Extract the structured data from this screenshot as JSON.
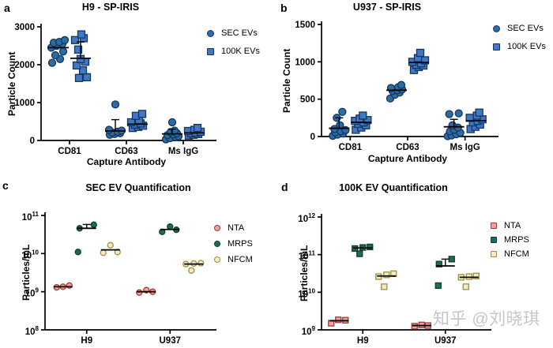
{
  "watermark": {
    "text": "知乎 @刘晓琪",
    "color": "#c6c6c6"
  },
  "palette": {
    "sec_ev_blue": "#2d6ba3",
    "k100_ev_blue": "#4277c6",
    "nta_pink": "#efa39a",
    "mrps_green": "#1e6a54",
    "nfcm_yellow": "#f4ecc0",
    "axis_black": "#000000"
  },
  "chart_data": [
    {
      "panel_label": "a",
      "type": "scatter",
      "title": "H9 - SP-IRIS",
      "ylabel": "Particle Count",
      "xlabel": "Capture Antibody",
      "categories": [
        "CD81",
        "CD63",
        "Ms IgG"
      ],
      "yaxis": {
        "scale": "linear",
        "min": 0,
        "max": 3000,
        "ticks": [
          0,
          1000,
          2000,
          3000
        ]
      },
      "legend_position": "right-top",
      "series": [
        {
          "name": "SEC EVs",
          "marker": "circle",
          "fill": "#2d6ba3",
          "stroke": "#14355e",
          "groups": [
            {
              "points": [
                [
                  -8,
                  2050
                ],
                [
                  2,
                  2150
                ],
                [
                  -4,
                  2250
                ],
                [
                  6,
                  2350
                ],
                [
                  -9,
                  2450
                ],
                [
                  -2,
                  2500
                ],
                [
                  5,
                  2550
                ],
                [
                  -6,
                  2580
                ],
                [
                  1,
                  2600
                ],
                [
                  8,
                  2650
                ]
              ],
              "mean": 2450
            },
            {
              "points": [
                [
                  -7,
                  150
                ],
                [
                  -1,
                  170
                ],
                [
                  6,
                  190
                ],
                [
                  -4,
                  210
                ],
                [
                  3,
                  230
                ],
                [
                  8,
                  260
                ],
                [
                  -8,
                  280
                ],
                [
                  0,
                  950
                ]
              ],
              "mean": 250,
              "err_hi": 550
            },
            {
              "points": [
                [
                  -8,
                  30
                ],
                [
                  -3,
                  60
                ],
                [
                  4,
                  90
                ],
                [
                  8,
                  110
                ],
                [
                  -6,
                  140
                ],
                [
                  1,
                  160
                ],
                [
                  6,
                  190
                ],
                [
                  -2,
                  220
                ],
                [
                  3,
                  260
                ],
                [
                  0,
                  480
                ]
              ],
              "mean": 175,
              "err_hi": 300
            }
          ]
        },
        {
          "name": "100K EVs",
          "marker": "square",
          "fill": "#4277c6",
          "stroke": "#14355e",
          "groups": [
            {
              "points": [
                [
                  -2,
                  1650
                ],
                [
                  8,
                  1670
                ],
                [
                  3,
                  1850
                ],
                [
                  -5,
                  1980
                ],
                [
                  6,
                  2080
                ],
                [
                  0,
                  2150
                ],
                [
                  -3,
                  2400
                ],
                [
                  -7,
                  2650
                ],
                [
                  4,
                  2700
                ],
                [
                  1,
                  2800
                ]
              ],
              "mean": 2170,
              "err_hi": 2600
            },
            {
              "points": [
                [
                  -6,
                  330
                ],
                [
                  1,
                  360
                ],
                [
                  7,
                  390
                ],
                [
                  -3,
                  420
                ],
                [
                  4,
                  450
                ],
                [
                  -8,
                  480
                ],
                [
                  2,
                  540
                ],
                [
                  -2,
                  650
                ],
                [
                  6,
                  700
                ]
              ],
              "mean": 430
            },
            {
              "points": [
                [
                  -7,
                  130
                ],
                [
                  -1,
                  150
                ],
                [
                  5,
                  170
                ],
                [
                  -4,
                  190
                ],
                [
                  2,
                  210
                ],
                [
                  8,
                  230
                ],
                [
                  -8,
                  250
                ],
                [
                  0,
                  280
                ],
                [
                  4,
                  330
                ]
              ],
              "mean": 200
            }
          ]
        }
      ]
    },
    {
      "panel_label": "b",
      "type": "scatter",
      "title": "U937 - SP-IRIS",
      "ylabel": "Particle Count",
      "xlabel": "Capture Antibody",
      "categories": [
        "CD81",
        "CD63",
        "Ms IgG"
      ],
      "yaxis": {
        "scale": "linear",
        "min": 0,
        "max": 1500,
        "ticks": [
          0,
          500,
          1000,
          1500
        ]
      },
      "legend_position": "right-top",
      "series": [
        {
          "name": "SEC EVs",
          "marker": "circle",
          "fill": "#2d6ba3",
          "stroke": "#14355e",
          "groups": [
            {
              "points": [
                [
                  -8,
                  10
                ],
                [
                  -2,
                  25
                ],
                [
                  5,
                  40
                ],
                [
                  -5,
                  55
                ],
                [
                  2,
                  70
                ],
                [
                  8,
                  85
                ],
                [
                  -6,
                  100
                ],
                [
                  1,
                  150
                ],
                [
                  -3,
                  250
                ],
                [
                  4,
                  330
                ]
              ],
              "mean": 110,
              "err_hi": 250
            },
            {
              "points": [
                [
                  -8,
                  510
                ],
                [
                  -2,
                  560
                ],
                [
                  4,
                  590
                ],
                [
                  -5,
                  610
                ],
                [
                  1,
                  620
                ],
                [
                  7,
                  630
                ],
                [
                  -7,
                  650
                ],
                [
                  2,
                  660
                ],
                [
                  6,
                  690
                ]
              ],
              "mean": 620
            },
            {
              "points": [
                [
                  -8,
                  5
                ],
                [
                  -3,
                  15
                ],
                [
                  3,
                  30
                ],
                [
                  8,
                  50
                ],
                [
                  -5,
                  70
                ],
                [
                  0,
                  90
                ],
                [
                  5,
                  120
                ],
                [
                  -2,
                  150
                ],
                [
                  -6,
                  300
                ],
                [
                  6,
                  310
                ]
              ],
              "mean": 130,
              "err_hi": 230
            }
          ]
        },
        {
          "name": "100K EVs",
          "marker": "square",
          "fill": "#4277c6",
          "stroke": "#14355e",
          "groups": [
            {
              "points": [
                [
                  -7,
                  90
                ],
                [
                  0,
                  120
                ],
                [
                  6,
                  150
                ],
                [
                  -4,
                  170
                ],
                [
                  3,
                  190
                ],
                [
                  -8,
                  210
                ],
                [
                  8,
                  220
                ],
                [
                  -2,
                  240
                ],
                [
                  2,
                  280
                ]
              ],
              "mean": 190
            },
            {
              "points": [
                [
                  -6,
                  890
                ],
                [
                  0,
                  930
                ],
                [
                  6,
                  950
                ],
                [
                  -3,
                  960
                ],
                [
                  3,
                  980
                ],
                [
                  -8,
                  1000
                ],
                [
                  8,
                  1020
                ],
                [
                  -1,
                  1050
                ],
                [
                  2,
                  1120
                ]
              ],
              "mean": 990
            },
            {
              "points": [
                [
                  -7,
                  100
                ],
                [
                  -1,
                  130
                ],
                [
                  5,
                  160
                ],
                [
                  -4,
                  190
                ],
                [
                  2,
                  210
                ],
                [
                  8,
                  230
                ],
                [
                  -8,
                  250
                ],
                [
                  1,
                  280
                ],
                [
                  4,
                  320
                ]
              ],
              "mean": 210
            }
          ]
        }
      ]
    },
    {
      "panel_label": "c",
      "type": "scatter",
      "title": "SEC EV Quantification",
      "ylabel": "Particles/mL",
      "xlabel": "",
      "categories": [
        "H9",
        "U937"
      ],
      "yaxis": {
        "scale": "log",
        "min_exp": 8,
        "max_exp": 11,
        "ticks": [
          8,
          9,
          10,
          11
        ]
      },
      "legend_position": "right-top",
      "series": [
        {
          "name": "NTA",
          "marker": "circle",
          "fill": "#efa39a",
          "stroke": "#9e3b38",
          "groups": [
            {
              "points": [
                [
                  -8,
                  1300000000.0
                ],
                [
                  0,
                  1350000000.0
                ],
                [
                  8,
                  1450000000.0
                ]
              ],
              "mean": 1350000000.0
            },
            {
              "points": [
                [
                  -9,
                  950000000.0
                ],
                [
                  0,
                  1100000000.0
                ],
                [
                  8,
                  1000000000.0
                ]
              ],
              "mean": 1000000000.0
            }
          ]
        },
        {
          "name": "MRPS",
          "marker": "circle",
          "fill": "#1e6a54",
          "stroke": "#0c3f31",
          "groups": [
            {
              "points": [
                [
                  -9,
                  46000000000.0
                ],
                [
                  9,
                  57000000000.0
                ],
                [
                  -11,
                  11000000000.0
                ]
              ],
              "mean": 46000000000.0,
              "err_hi": 58000000000.0
            },
            {
              "points": [
                [
                  0,
                  51000000000.0
                ],
                [
                  -10,
                  37000000000.0
                ],
                [
                  8,
                  42000000000.0
                ]
              ],
              "mean": 43000000000.0
            }
          ]
        },
        {
          "name": "NFCM",
          "marker": "circle",
          "fill": "#f4ecc0",
          "stroke": "#9c8e44",
          "groups": [
            {
              "points": [
                [
                  0,
                  16500000000.0
                ],
                [
                  -9,
                  10500000000.0
                ],
                [
                  9,
                  11000000000.0
                ]
              ],
              "mean": 12500000000.0
            },
            {
              "points": [
                [
                  -10,
                  5300000000.0
                ],
                [
                  0,
                  5500000000.0
                ],
                [
                  9,
                  5600000000.0
                ],
                [
                  -3,
                  3600000000.0
                ]
              ],
              "mean": 5300000000.0
            }
          ]
        }
      ]
    },
    {
      "panel_label": "d",
      "type": "scatter",
      "title": "100K EV Quantification",
      "ylabel": "Particles/mL",
      "xlabel": "",
      "categories": [
        "H9",
        "U937"
      ],
      "yaxis": {
        "scale": "log",
        "min_exp": 9,
        "max_exp": 12,
        "ticks": [
          9,
          10,
          11,
          12
        ]
      },
      "legend_position": "right-top",
      "series": [
        {
          "name": "NTA",
          "marker": "square",
          "fill": "#efa39a",
          "stroke": "#9e3b38",
          "groups": [
            {
              "points": [
                [
                  -10,
                  1500000000.0
                ],
                [
                  -1,
                  1850000000.0
                ],
                [
                  8,
                  1800000000.0
                ]
              ],
              "mean": 1750000000.0
            },
            {
              "points": [
                [
                  -9,
                  1250000000.0
                ],
                [
                  0,
                  1350000000.0
                ],
                [
                  8,
                  1300000000.0
                ]
              ],
              "mean": 1300000000.0
            }
          ]
        },
        {
          "name": "MRPS",
          "marker": "square",
          "fill": "#1e6a54",
          "stroke": "#0c3f31",
          "groups": [
            {
              "points": [
                [
                  -10,
                  145000000000.0
                ],
                [
                  0,
                  155000000000.0
                ],
                [
                  9,
                  160000000000.0
                ],
                [
                  -4,
                  105000000000.0
                ]
              ],
              "mean": 150000000000.0
            },
            {
              "points": [
                [
                  -8,
                  56000000000.0
                ],
                [
                  8,
                  76000000000.0
                ],
                [
                  -9,
                  15000000000.0
                ]
              ],
              "mean": 50000000000.0,
              "err_hi": 76000000000.0
            }
          ]
        },
        {
          "name": "NFCM",
          "marker": "square",
          "fill": "#f4ecc0",
          "stroke": "#9c8e44",
          "groups": [
            {
              "points": [
                [
                  -10,
                  26000000000.0
                ],
                [
                  0,
                  29000000000.0
                ],
                [
                  9,
                  31000000000.0
                ],
                [
                  -3,
                  14000000000.0
                ]
              ],
              "mean": 27000000000.0
            },
            {
              "points": [
                [
                  -10,
                  25000000000.0
                ],
                [
                  0,
                  26000000000.0
                ],
                [
                  9,
                  27000000000.0
                ],
                [
                  -4,
                  14000000000.0
                ]
              ],
              "mean": 25000000000.0
            }
          ]
        }
      ]
    }
  ]
}
